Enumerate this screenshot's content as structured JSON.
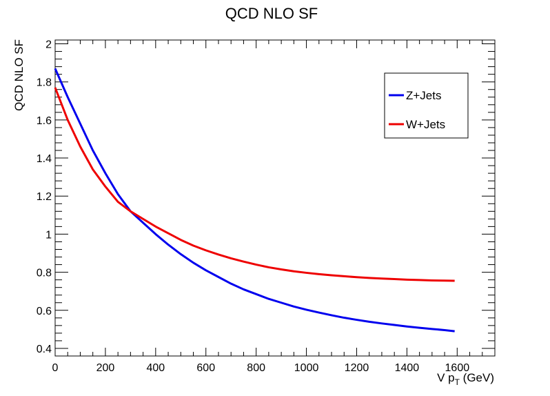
{
  "chart_data": {
    "type": "line",
    "title": "QCD NLO SF",
    "xlabel": {
      "main": "V p",
      "sub": "T",
      "unit": " (GeV)"
    },
    "ylabel": "QCD NLO SF",
    "xlim": [
      0,
      1750
    ],
    "ylim": [
      0.36,
      2.02
    ],
    "xticks": [
      0,
      200,
      400,
      600,
      800,
      1000,
      1200,
      1400,
      1600
    ],
    "yticks": [
      0.4,
      0.6,
      0.8,
      1,
      1.2,
      1.4,
      1.6,
      1.8,
      2
    ],
    "grid": false,
    "legend_position": "top-right",
    "series": [
      {
        "name": "Z+Jets",
        "color": "#0000ee",
        "x": [
          0,
          50,
          100,
          150,
          200,
          250,
          300,
          350,
          400,
          450,
          500,
          550,
          600,
          650,
          700,
          750,
          800,
          850,
          900,
          950,
          1000,
          1050,
          1100,
          1150,
          1200,
          1250,
          1300,
          1350,
          1400,
          1450,
          1500,
          1550,
          1590
        ],
        "y": [
          1.87,
          1.72,
          1.58,
          1.44,
          1.32,
          1.21,
          1.12,
          1.06,
          1.0,
          0.945,
          0.895,
          0.85,
          0.81,
          0.775,
          0.74,
          0.71,
          0.685,
          0.66,
          0.64,
          0.62,
          0.603,
          0.588,
          0.574,
          0.561,
          0.55,
          0.54,
          0.531,
          0.523,
          0.515,
          0.508,
          0.502,
          0.496,
          0.49
        ]
      },
      {
        "name": "W+Jets",
        "color": "#ee0000",
        "x": [
          0,
          50,
          100,
          150,
          200,
          250,
          300,
          350,
          400,
          450,
          500,
          550,
          600,
          650,
          700,
          750,
          800,
          850,
          900,
          950,
          1000,
          1050,
          1100,
          1150,
          1200,
          1250,
          1300,
          1350,
          1400,
          1450,
          1500,
          1550,
          1590
        ],
        "y": [
          1.77,
          1.6,
          1.46,
          1.34,
          1.25,
          1.17,
          1.12,
          1.08,
          1.04,
          1.005,
          0.97,
          0.94,
          0.915,
          0.893,
          0.873,
          0.856,
          0.84,
          0.826,
          0.815,
          0.805,
          0.797,
          0.79,
          0.784,
          0.779,
          0.774,
          0.77,
          0.767,
          0.764,
          0.761,
          0.759,
          0.757,
          0.756,
          0.755
        ]
      }
    ]
  }
}
